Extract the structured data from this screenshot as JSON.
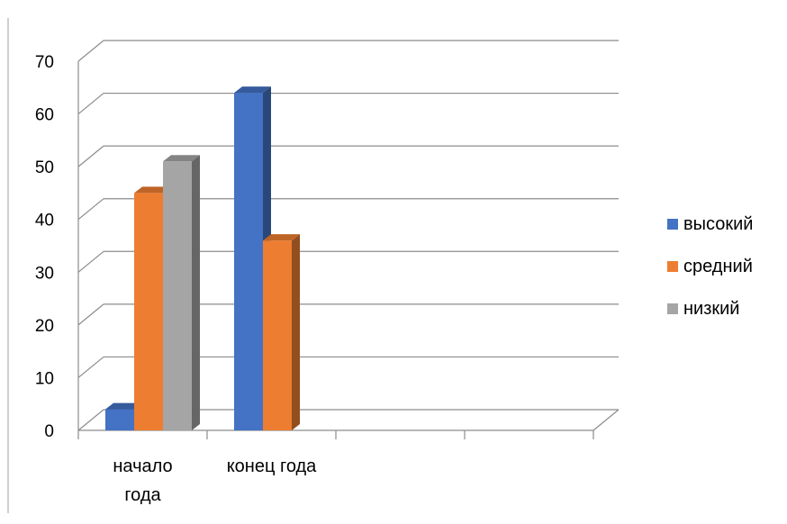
{
  "chart_data": {
    "type": "bar",
    "three_d": true,
    "categories": [
      "начало года",
      "конец года",
      "",
      ""
    ],
    "category_label_lines": [
      [
        "начало",
        "года"
      ],
      [
        "конец года"
      ],
      [
        ""
      ],
      [
        ""
      ]
    ],
    "series": [
      {
        "name": "высокий",
        "values": [
          4,
          64,
          null,
          null
        ],
        "color": "#4472C4"
      },
      {
        "name": "средний",
        "values": [
          45,
          36,
          null,
          null
        ],
        "color": "#ED7D31"
      },
      {
        "name": "низкий",
        "values": [
          51,
          null,
          null,
          null
        ],
        "color": "#A5A5A5"
      }
    ],
    "ylim": [
      0,
      70
    ],
    "yticks": [
      0,
      10,
      20,
      30,
      40,
      50,
      60,
      70
    ],
    "grid": true,
    "legend_position": "right",
    "title": "",
    "xlabel": "",
    "ylabel": ""
  }
}
